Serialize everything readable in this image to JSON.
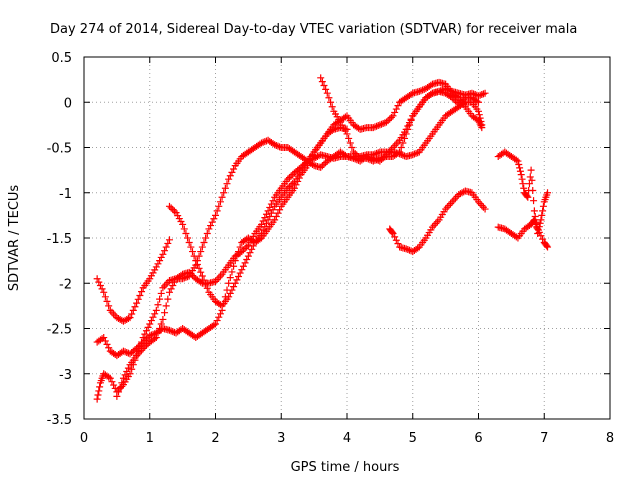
{
  "chart_data": {
    "type": "scatter",
    "title": "Day 274 of 2014, Sidereal Day-to-day VTEC variation (SDTVAR) for receiver mala",
    "xlabel": "GPS time / hours",
    "ylabel": "SDTVAR / TECUs",
    "xlim": [
      0,
      8
    ],
    "ylim": [
      -3.5,
      0.5
    ],
    "xticks": [
      "0",
      "1",
      "2",
      "3",
      "4",
      "5",
      "6",
      "7",
      "8"
    ],
    "yticks": [
      "0.5",
      "0",
      "-0.5",
      "-1",
      "-1.5",
      "-2",
      "-2.5",
      "-3",
      "-3.5"
    ],
    "grid": true,
    "marker": "plus",
    "color": "#ff0000",
    "series": [
      {
        "values": [
          [
            0.2,
            -1.95
          ],
          [
            0.3,
            -2.1
          ],
          [
            0.4,
            -2.3
          ],
          [
            0.5,
            -2.38
          ],
          [
            0.6,
            -2.42
          ],
          [
            0.7,
            -2.38
          ],
          [
            0.8,
            -2.22
          ],
          [
            0.9,
            -2.05
          ],
          [
            1.0,
            -1.95
          ],
          [
            1.1,
            -1.82
          ],
          [
            1.2,
            -1.68
          ],
          [
            1.3,
            -1.52
          ]
        ]
      },
      {
        "values": [
          [
            0.2,
            -3.28
          ],
          [
            0.25,
            -3.1
          ],
          [
            0.3,
            -3.0
          ],
          [
            0.4,
            -3.05
          ],
          [
            0.5,
            -3.2
          ],
          [
            0.6,
            -3.12
          ],
          [
            0.7,
            -3.0
          ],
          [
            0.8,
            -2.8
          ],
          [
            0.9,
            -2.6
          ],
          [
            1.0,
            -2.45
          ],
          [
            1.1,
            -2.3
          ],
          [
            1.2,
            -2.05
          ],
          [
            1.3,
            -1.97
          ],
          [
            1.4,
            -1.95
          ],
          [
            1.5,
            -1.95
          ],
          [
            1.6,
            -1.92
          ],
          [
            1.7,
            -1.8
          ],
          [
            1.8,
            -1.6
          ],
          [
            1.9,
            -1.4
          ],
          [
            2.0,
            -1.25
          ],
          [
            2.1,
            -1.05
          ],
          [
            2.2,
            -0.85
          ],
          [
            2.3,
            -0.7
          ],
          [
            2.4,
            -0.6
          ],
          [
            2.5,
            -0.55
          ],
          [
            2.6,
            -0.5
          ],
          [
            2.7,
            -0.45
          ],
          [
            2.8,
            -0.42
          ],
          [
            2.9,
            -0.47
          ],
          [
            3.0,
            -0.5
          ],
          [
            3.1,
            -0.5
          ],
          [
            3.2,
            -0.55
          ],
          [
            3.3,
            -0.6
          ],
          [
            3.4,
            -0.65
          ],
          [
            3.5,
            -0.7
          ],
          [
            3.6,
            -0.72
          ],
          [
            3.7,
            -0.65
          ],
          [
            3.8,
            -0.6
          ],
          [
            3.9,
            -0.55
          ],
          [
            4.0,
            -0.6
          ],
          [
            4.1,
            -0.62
          ],
          [
            4.2,
            -0.65
          ],
          [
            4.3,
            -0.6
          ],
          [
            4.4,
            -0.62
          ],
          [
            4.5,
            -0.65
          ],
          [
            4.6,
            -0.58
          ],
          [
            4.7,
            -0.5
          ],
          [
            4.8,
            -0.42
          ],
          [
            4.9,
            -0.3
          ],
          [
            5.0,
            -0.15
          ],
          [
            5.1,
            -0.05
          ],
          [
            5.2,
            0.05
          ],
          [
            5.3,
            0.1
          ],
          [
            5.4,
            0.12
          ],
          [
            5.5,
            0.15
          ],
          [
            5.6,
            0.12
          ],
          [
            5.7,
            0.1
          ],
          [
            5.8,
            0.08
          ],
          [
            5.9,
            0.1
          ],
          [
            6.0,
            0.07
          ],
          [
            6.1,
            0.1
          ]
        ]
      },
      {
        "values": [
          [
            0.2,
            -2.65
          ],
          [
            0.3,
            -2.6
          ],
          [
            0.4,
            -2.75
          ],
          [
            0.5,
            -2.8
          ],
          [
            0.6,
            -2.75
          ],
          [
            0.7,
            -2.78
          ],
          [
            0.8,
            -2.72
          ],
          [
            0.9,
            -2.65
          ],
          [
            1.0,
            -2.58
          ],
          [
            1.1,
            -2.55
          ],
          [
            1.2,
            -2.5
          ],
          [
            1.3,
            -2.52
          ],
          [
            1.4,
            -2.55
          ],
          [
            1.5,
            -2.5
          ],
          [
            1.6,
            -2.55
          ],
          [
            1.7,
            -2.6
          ],
          [
            1.8,
            -2.55
          ],
          [
            1.9,
            -2.5
          ],
          [
            2.0,
            -2.45
          ],
          [
            2.1,
            -2.3
          ],
          [
            2.2,
            -2.0
          ],
          [
            2.3,
            -1.75
          ],
          [
            2.4,
            -1.55
          ],
          [
            2.5,
            -1.5
          ],
          [
            2.6,
            -1.55
          ],
          [
            2.7,
            -1.5
          ],
          [
            2.8,
            -1.4
          ],
          [
            2.9,
            -1.3
          ],
          [
            3.0,
            -1.15
          ],
          [
            3.1,
            -1.05
          ],
          [
            3.2,
            -0.95
          ],
          [
            3.3,
            -0.8
          ],
          [
            3.4,
            -0.7
          ],
          [
            3.5,
            -0.55
          ],
          [
            3.6,
            -0.45
          ],
          [
            3.7,
            -0.35
          ],
          [
            3.8,
            -0.25
          ],
          [
            3.9,
            -0.2
          ],
          [
            4.0,
            -0.15
          ],
          [
            4.1,
            -0.25
          ],
          [
            4.2,
            -0.3
          ],
          [
            4.3,
            -0.28
          ],
          [
            4.4,
            -0.28
          ],
          [
            4.5,
            -0.25
          ],
          [
            4.6,
            -0.22
          ],
          [
            4.7,
            -0.15
          ],
          [
            4.8,
            0.0
          ],
          [
            4.9,
            0.05
          ],
          [
            5.0,
            0.1
          ],
          [
            5.1,
            0.12
          ],
          [
            5.2,
            0.15
          ],
          [
            5.3,
            0.2
          ],
          [
            5.4,
            0.22
          ],
          [
            5.5,
            0.2
          ],
          [
            5.6,
            0.1
          ],
          [
            5.7,
            0.05
          ],
          [
            5.8,
            -0.05
          ],
          [
            5.9,
            -0.15
          ],
          [
            6.0,
            -0.2
          ],
          [
            6.05,
            -0.28
          ]
        ]
      },
      {
        "values": [
          [
            0.5,
            -3.25
          ],
          [
            0.6,
            -3.05
          ],
          [
            0.7,
            -2.9
          ],
          [
            0.8,
            -2.8
          ],
          [
            0.9,
            -2.72
          ],
          [
            1.0,
            -2.65
          ],
          [
            1.1,
            -2.6
          ],
          [
            1.2,
            -2.4
          ],
          [
            1.3,
            -2.1
          ],
          [
            1.4,
            -1.95
          ],
          [
            1.5,
            -1.9
          ],
          [
            1.6,
            -1.88
          ],
          [
            1.7,
            -1.95
          ],
          [
            1.8,
            -2.0
          ],
          [
            1.9,
            -2.0
          ],
          [
            2.0,
            -1.98
          ],
          [
            2.1,
            -1.9
          ],
          [
            2.2,
            -1.8
          ],
          [
            2.3,
            -1.7
          ],
          [
            2.4,
            -1.65
          ],
          [
            2.5,
            -1.58
          ],
          [
            2.6,
            -1.45
          ],
          [
            2.7,
            -1.35
          ],
          [
            2.8,
            -1.2
          ],
          [
            2.9,
            -1.05
          ],
          [
            3.0,
            -0.95
          ],
          [
            3.1,
            -0.85
          ],
          [
            3.2,
            -0.78
          ],
          [
            3.3,
            -0.72
          ],
          [
            3.4,
            -0.65
          ],
          [
            3.5,
            -0.62
          ],
          [
            3.6,
            -0.58
          ],
          [
            3.7,
            -0.6
          ],
          [
            3.8,
            -0.62
          ],
          [
            3.9,
            -0.6
          ],
          [
            4.0,
            -0.6
          ],
          [
            4.1,
            -0.6
          ],
          [
            4.2,
            -0.6
          ],
          [
            4.3,
            -0.58
          ],
          [
            4.4,
            -0.58
          ],
          [
            4.5,
            -0.55
          ],
          [
            4.6,
            -0.55
          ],
          [
            4.7,
            -0.55
          ],
          [
            4.8,
            -0.57
          ],
          [
            4.9,
            -0.6
          ],
          [
            5.0,
            -0.58
          ],
          [
            5.1,
            -0.55
          ],
          [
            5.2,
            -0.45
          ],
          [
            5.3,
            -0.35
          ],
          [
            5.4,
            -0.25
          ],
          [
            5.5,
            -0.15
          ],
          [
            5.6,
            -0.1
          ],
          [
            5.7,
            -0.05
          ],
          [
            5.8,
            0.0
          ],
          [
            5.9,
            0.0
          ],
          [
            6.0,
            -0.1
          ],
          [
            6.05,
            -0.25
          ]
        ]
      },
      {
        "values": [
          [
            1.3,
            -1.15
          ],
          [
            1.4,
            -1.22
          ],
          [
            1.5,
            -1.35
          ],
          [
            1.6,
            -1.55
          ],
          [
            1.7,
            -1.75
          ],
          [
            1.8,
            -1.92
          ],
          [
            1.9,
            -2.1
          ],
          [
            2.0,
            -2.2
          ],
          [
            2.1,
            -2.25
          ],
          [
            2.2,
            -2.15
          ],
          [
            2.3,
            -2.0
          ],
          [
            2.4,
            -1.85
          ],
          [
            2.5,
            -1.7
          ],
          [
            2.6,
            -1.55
          ],
          [
            2.7,
            -1.45
          ],
          [
            2.8,
            -1.3
          ],
          [
            2.9,
            -1.15
          ],
          [
            3.0,
            -1.05
          ],
          [
            3.1,
            -0.95
          ],
          [
            3.2,
            -0.88
          ],
          [
            3.3,
            -0.75
          ],
          [
            3.4,
            -0.65
          ],
          [
            3.5,
            -0.55
          ],
          [
            3.6,
            -0.45
          ],
          [
            3.7,
            -0.35
          ],
          [
            3.8,
            -0.3
          ],
          [
            3.9,
            -0.28
          ],
          [
            4.0,
            -0.3
          ]
        ]
      },
      {
        "values": [
          [
            3.6,
            0.27
          ],
          [
            3.7,
            0.1
          ],
          [
            3.8,
            -0.1
          ],
          [
            3.9,
            -0.22
          ],
          [
            4.0,
            -0.35
          ],
          [
            4.1,
            -0.55
          ],
          [
            4.2,
            -0.62
          ],
          [
            4.3,
            -0.62
          ],
          [
            4.4,
            -0.65
          ],
          [
            4.5,
            -0.62
          ],
          [
            4.6,
            -0.6
          ],
          [
            4.7,
            -0.6
          ],
          [
            4.8,
            -0.55
          ],
          [
            4.9,
            -0.35
          ],
          [
            5.0,
            -0.15
          ],
          [
            5.1,
            -0.05
          ],
          [
            5.2,
            0.05
          ],
          [
            5.3,
            0.1
          ],
          [
            5.4,
            0.12
          ],
          [
            5.5,
            0.1
          ],
          [
            5.6,
            0.05
          ],
          [
            5.7,
            -0.02
          ],
          [
            5.8,
            0.05
          ],
          [
            5.9,
            0.05
          ],
          [
            6.0,
            0.0
          ]
        ]
      },
      {
        "values": [
          [
            4.65,
            -1.4
          ],
          [
            4.7,
            -1.45
          ],
          [
            4.8,
            -1.6
          ],
          [
            4.9,
            -1.62
          ],
          [
            5.0,
            -1.65
          ],
          [
            5.1,
            -1.6
          ],
          [
            5.2,
            -1.5
          ],
          [
            5.3,
            -1.38
          ],
          [
            5.4,
            -1.3
          ],
          [
            5.5,
            -1.18
          ],
          [
            5.6,
            -1.1
          ],
          [
            5.7,
            -1.02
          ],
          [
            5.8,
            -0.98
          ],
          [
            5.9,
            -1.0
          ],
          [
            6.0,
            -1.1
          ],
          [
            6.1,
            -1.18
          ]
        ]
      },
      {
        "values": [
          [
            6.3,
            -0.6
          ],
          [
            6.4,
            -0.55
          ],
          [
            6.5,
            -0.6
          ],
          [
            6.6,
            -0.65
          ],
          [
            6.65,
            -0.8
          ],
          [
            6.7,
            -1.0
          ],
          [
            6.75,
            -1.05
          ],
          [
            6.8,
            -0.75
          ],
          [
            6.85,
            -1.2
          ],
          [
            6.9,
            -1.45
          ],
          [
            6.95,
            -1.3
          ],
          [
            7.0,
            -1.1
          ],
          [
            7.05,
            -1.0
          ]
        ]
      },
      {
        "values": [
          [
            6.3,
            -1.38
          ],
          [
            6.4,
            -1.4
          ],
          [
            6.5,
            -1.45
          ],
          [
            6.6,
            -1.5
          ],
          [
            6.7,
            -1.4
          ],
          [
            6.8,
            -1.35
          ],
          [
            6.85,
            -1.3
          ],
          [
            6.9,
            -1.4
          ],
          [
            7.0,
            -1.55
          ],
          [
            7.05,
            -1.6
          ]
        ]
      }
    ]
  }
}
